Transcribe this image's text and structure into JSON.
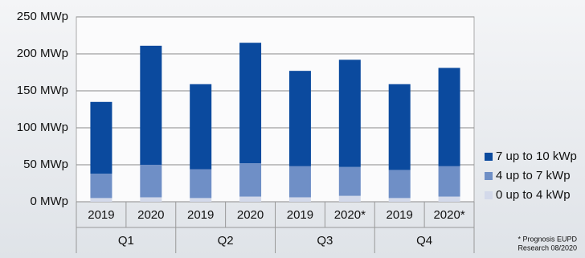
{
  "chart_data": {
    "type": "stacked-bar",
    "categories": [
      "2019",
      "2020",
      "2019",
      "2020",
      "2019",
      "2020*",
      "2019",
      "2020*"
    ],
    "groups": [
      "Q1",
      "Q2",
      "Q3",
      "Q4"
    ],
    "series": [
      {
        "name": "0 up to 4 kWp",
        "color": "#d3d9ea",
        "values": [
          5,
          6,
          5,
          7,
          6,
          8,
          5,
          7
        ]
      },
      {
        "name": "4 up to 7 kWp",
        "color": "#6f8fc6",
        "values": [
          33,
          44,
          39,
          45,
          42,
          39,
          38,
          41
        ]
      },
      {
        "name": "7 up to 10 kWp",
        "color": "#0b4a9e",
        "values": [
          97,
          161,
          115,
          163,
          129,
          145,
          116,
          133
        ]
      }
    ],
    "ylim": [
      0,
      250
    ],
    "yticks": [
      {
        "value": 0,
        "label": "0 MWp"
      },
      {
        "value": 50,
        "label": "50 MWp"
      },
      {
        "value": 100,
        "label": "100 MWp"
      },
      {
        "value": 150,
        "label": "150 MWp"
      },
      {
        "value": 200,
        "label": "200 MWp"
      },
      {
        "value": 250,
        "label": "250 MWp"
      }
    ],
    "grid": true,
    "footnote": [
      "* Prognosis EUPD",
      "Research 08/2020"
    ]
  }
}
